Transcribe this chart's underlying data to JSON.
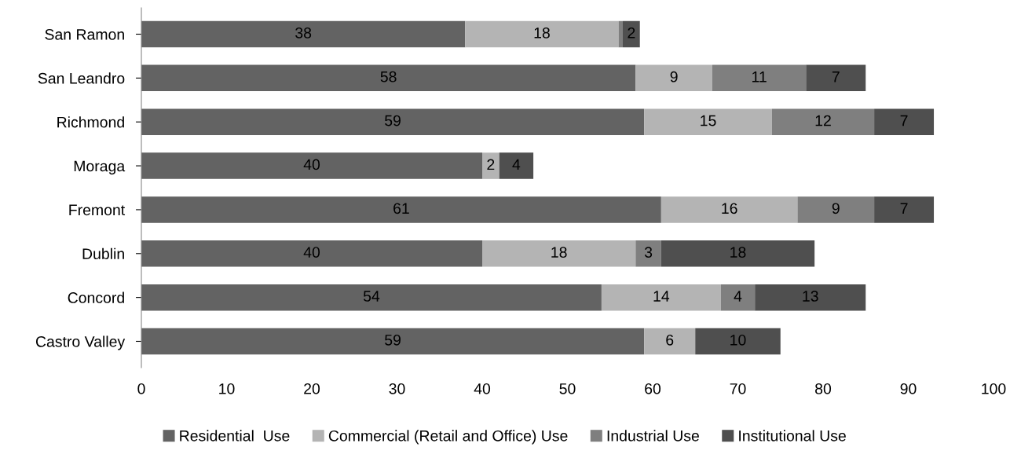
{
  "chart_data": {
    "type": "bar",
    "orientation": "horizontal",
    "stacked": true,
    "categories": [
      "San Ramon",
      "San Leandro",
      "Richmond",
      "Moraga",
      "Fremont",
      "Dublin",
      "Concord",
      "Castro Valley"
    ],
    "series": [
      {
        "name": "Residential  Use",
        "color": "#636363",
        "values": [
          38,
          58,
          59,
          40,
          61,
          40,
          54,
          59
        ],
        "value_labels": [
          "38",
          "58",
          "59",
          "40",
          "61",
          "40",
          "54",
          "59"
        ]
      },
      {
        "name": "Commercial (Retail and Office) Use",
        "color": "#b4b4b4",
        "values": [
          18,
          9,
          15,
          2,
          16,
          18,
          14,
          6
        ],
        "value_labels": [
          "18",
          "9",
          "15",
          "2",
          "16",
          "18",
          "14",
          "6"
        ]
      },
      {
        "name": "Industrial Use",
        "color": "#7f7f7f",
        "values": [
          0.5,
          11,
          12,
          null,
          9,
          3,
          4,
          null
        ],
        "value_labels": [
          null,
          "11",
          "12",
          null,
          "9",
          "3",
          "4",
          null
        ]
      },
      {
        "name": "Institutional Use",
        "color": "#4f4f4f",
        "values": [
          2,
          7,
          7,
          4,
          7,
          18,
          13,
          10
        ],
        "value_labels": [
          "2",
          "7",
          "7",
          "4",
          "7",
          "18",
          "13",
          "10"
        ]
      }
    ],
    "xlim": [
      0,
      100
    ],
    "xticks": [
      0,
      10,
      20,
      30,
      40,
      50,
      60,
      70,
      80,
      90,
      100
    ],
    "grid": false,
    "legend": "bottom"
  }
}
